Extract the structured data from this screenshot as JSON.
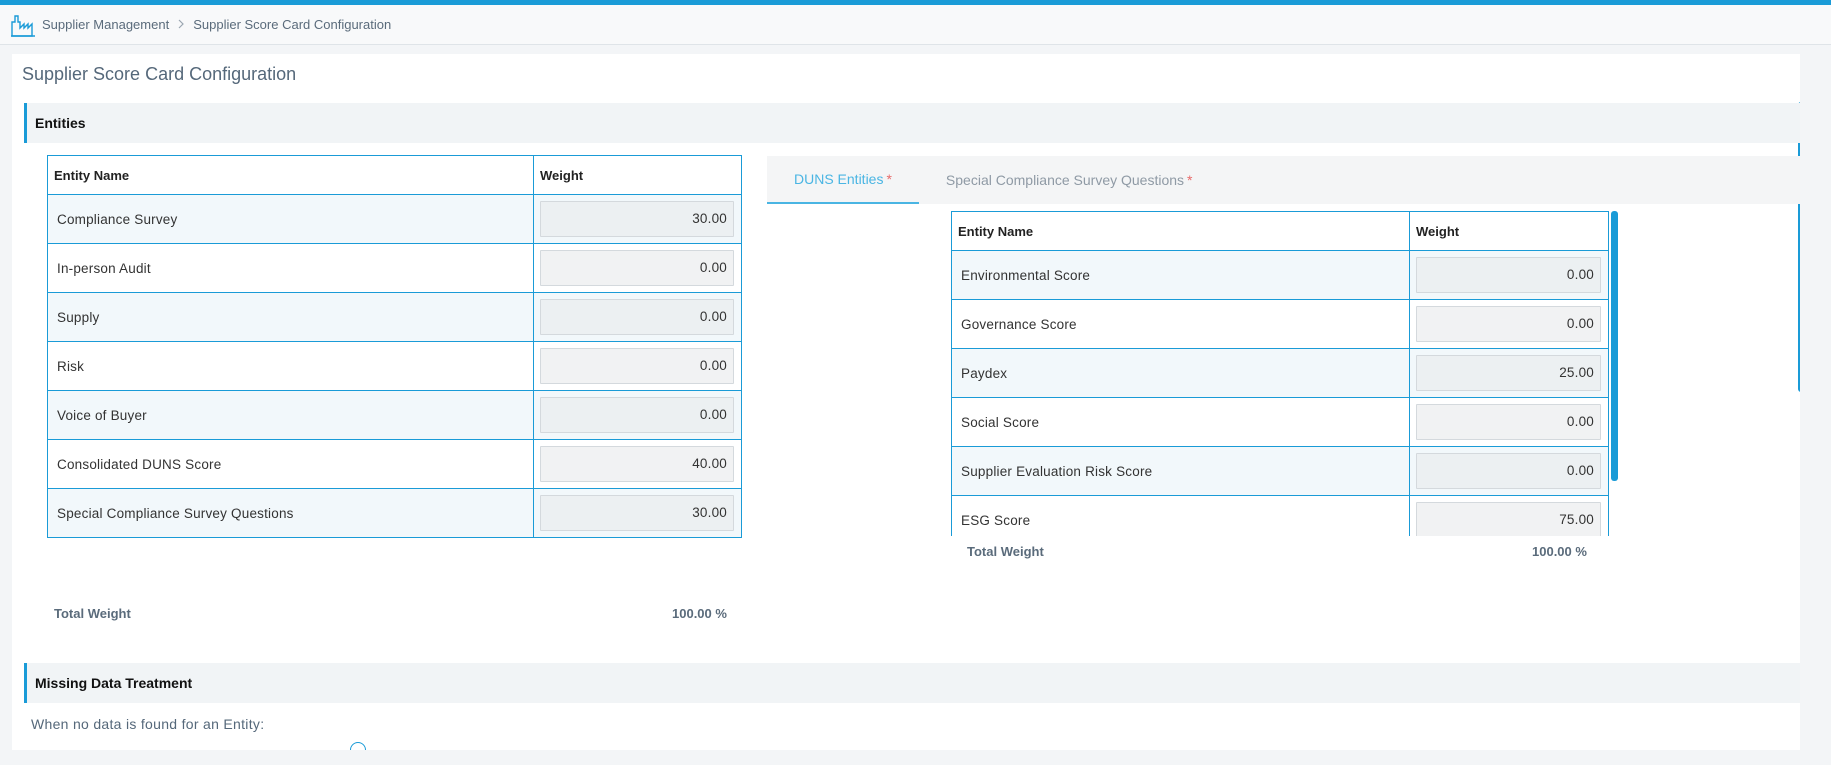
{
  "breadcrumb": {
    "items": [
      "Supplier Management",
      "Supplier Score Card Configuration"
    ],
    "separator": ">"
  },
  "page": {
    "title": "Supplier Score Card Configuration"
  },
  "entities_section": {
    "title": "Entities",
    "columns": [
      "Entity Name",
      "Weight"
    ],
    "rows": [
      {
        "name": "Compliance Survey",
        "weight": "30.00"
      },
      {
        "name": "In-person Audit",
        "weight": "0.00"
      },
      {
        "name": "Supply",
        "weight": "0.00"
      },
      {
        "name": "Risk",
        "weight": "0.00"
      },
      {
        "name": "Voice of Buyer",
        "weight": "0.00"
      },
      {
        "name": "Consolidated DUNS Score",
        "weight": "40.00"
      },
      {
        "name": "Special Compliance Survey Questions",
        "weight": "30.00"
      }
    ],
    "total_label": "Total Weight",
    "total_value": "100.00 %"
  },
  "tabs": [
    {
      "label": "DUNS Entities",
      "required": "*",
      "active": true
    },
    {
      "label": "Special Compliance Survey Questions",
      "required": "*",
      "active": false
    }
  ],
  "duns_section": {
    "columns": [
      "Entity Name",
      "Weight"
    ],
    "rows": [
      {
        "name": "Environmental Score",
        "weight": "0.00"
      },
      {
        "name": "Governance Score",
        "weight": "0.00"
      },
      {
        "name": "Paydex",
        "weight": "25.00"
      },
      {
        "name": "Social Score",
        "weight": "0.00"
      },
      {
        "name": "Supplier Evaluation Risk Score",
        "weight": "0.00"
      },
      {
        "name": "ESG Score",
        "weight": "75.00"
      }
    ],
    "total_label": "Total Weight",
    "total_value": "100.00 %"
  },
  "missing_data": {
    "title": "Missing Data Treatment",
    "prompt": "When no data is found for an Entity:"
  },
  "colors": {
    "accent": "#1a9bd7",
    "tab_active": "#4ab5e3",
    "required": "#e86a6a"
  }
}
